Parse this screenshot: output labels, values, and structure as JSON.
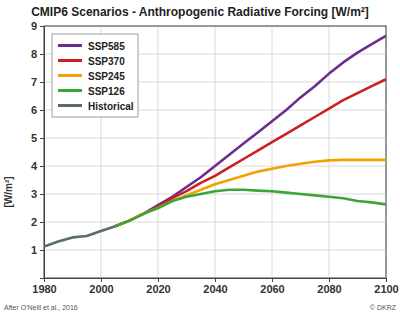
{
  "chart_data": {
    "type": "line",
    "title": "CMIP6 Scenarios  -  Anthropogenic Radiative Forcing [W/m²]",
    "y_label": "[W/m²]",
    "annotations": [
      "After O'Neill et al., 2016",
      "© DKRZ"
    ],
    "x": [
      1980,
      1985,
      1990,
      1995,
      2000,
      2005,
      2010,
      2015,
      2020,
      2025,
      2030,
      2035,
      2040,
      2045,
      2050,
      2055,
      2060,
      2065,
      2070,
      2075,
      2080,
      2085,
      2090,
      2095,
      2100
    ],
    "series": [
      {
        "name": "SSP585",
        "color": "#6b2d8f",
        "values": [
          null,
          null,
          null,
          null,
          null,
          1.85,
          2.05,
          2.3,
          2.6,
          2.9,
          3.25,
          3.6,
          4.0,
          4.4,
          4.8,
          5.2,
          5.6,
          6.0,
          6.45,
          6.85,
          7.3,
          7.7,
          8.05,
          8.35,
          8.65
        ]
      },
      {
        "name": "SSP370",
        "color": "#cc2020",
        "values": [
          null,
          null,
          null,
          null,
          null,
          1.85,
          2.05,
          2.3,
          2.55,
          2.85,
          3.1,
          3.4,
          3.65,
          3.95,
          4.25,
          4.55,
          4.85,
          5.15,
          5.45,
          5.75,
          6.05,
          6.35,
          6.6,
          6.85,
          7.1
        ]
      },
      {
        "name": "SSP245",
        "color": "#f2a200",
        "values": [
          null,
          null,
          null,
          null,
          null,
          1.85,
          2.05,
          2.3,
          2.5,
          2.75,
          2.95,
          3.15,
          3.35,
          3.5,
          3.65,
          3.8,
          3.9,
          4.0,
          4.08,
          4.15,
          4.2,
          4.22,
          4.22,
          4.22,
          4.22
        ]
      },
      {
        "name": "SSP126",
        "color": "#3aa63a",
        "values": [
          null,
          null,
          null,
          null,
          null,
          1.85,
          2.05,
          2.3,
          2.5,
          2.75,
          2.9,
          3.0,
          3.1,
          3.15,
          3.15,
          3.12,
          3.1,
          3.05,
          3.0,
          2.95,
          2.9,
          2.85,
          2.75,
          2.7,
          2.63
        ]
      },
      {
        "name": "Historical",
        "color": "#5b6a70",
        "values": [
          1.12,
          1.3,
          1.45,
          1.5,
          1.68,
          1.85,
          null,
          null,
          null,
          null,
          null,
          null,
          null,
          null,
          null,
          null,
          null,
          null,
          null,
          null,
          null,
          null,
          null,
          null,
          null
        ]
      }
    ],
    "xlim": [
      1980,
      2100
    ],
    "xticks": [
      1980,
      2000,
      2020,
      2040,
      2060,
      2080,
      2100
    ],
    "ylim": [
      0,
      9
    ],
    "yticks": [
      1,
      2,
      3,
      4,
      5,
      6,
      7,
      8,
      9
    ],
    "grid": true,
    "legend": "upper left"
  }
}
